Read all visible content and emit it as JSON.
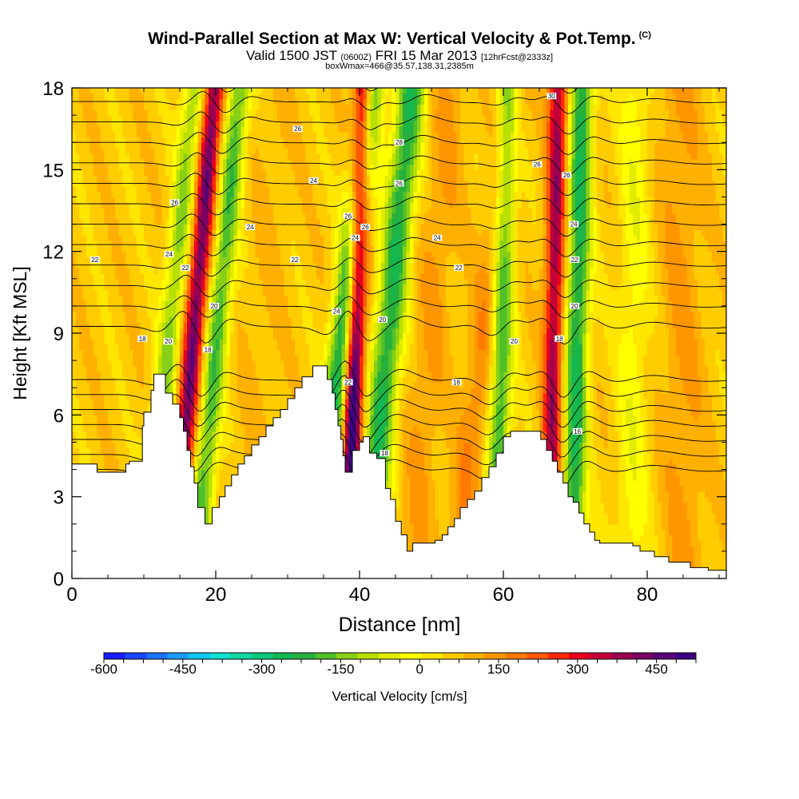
{
  "header": {
    "title": "Wind-Parallel Section at Max W: Vertical Velocity & Pot.Temp.",
    "copyright": "(C)",
    "subtitle_main": "Valid 1500 JST",
    "subtitle_utc": "(0600Z)",
    "subtitle_date": "FRI 15 Mar 2013",
    "subtitle_fcst": "[12hrFcst@2333z]",
    "subtitle2": "boxWmax=466@35.57,138.31,2385m"
  },
  "chart_data": {
    "type": "contour",
    "xlabel": "Distance [nm]",
    "ylabel": "Height [Kft MSL]",
    "xlim": [
      0,
      91
    ],
    "ylim": [
      0,
      18
    ],
    "xticks": [
      0,
      20,
      40,
      60,
      80
    ],
    "yticks": [
      0,
      3,
      6,
      9,
      12,
      15,
      18
    ],
    "xtick_labels": [
      "0",
      "20",
      "40",
      "60",
      "80"
    ],
    "ytick_labels": [
      "0",
      "3",
      "6",
      "9",
      "12",
      "15",
      "18"
    ],
    "terrain": [
      [
        0,
        4.2
      ],
      [
        3.5,
        4.2
      ],
      [
        3.5,
        3.9
      ],
      [
        7.5,
        3.9
      ],
      [
        7.5,
        4.2
      ],
      [
        8,
        4.2
      ],
      [
        8,
        4.3
      ],
      [
        9.8,
        4.3
      ],
      [
        9.8,
        5.6
      ],
      [
        10,
        5.6
      ],
      [
        10,
        6.1
      ],
      [
        11,
        6.1
      ],
      [
        11,
        6.9
      ],
      [
        11.4,
        6.9
      ],
      [
        11.4,
        7.5
      ],
      [
        13,
        7.5
      ],
      [
        13,
        6.8
      ],
      [
        14,
        6.8
      ],
      [
        14,
        6.4
      ],
      [
        15,
        6.4
      ],
      [
        15,
        5.9
      ],
      [
        15.5,
        5.9
      ],
      [
        15.5,
        5.4
      ],
      [
        16,
        5.4
      ],
      [
        16,
        4.7
      ],
      [
        16.5,
        4.7
      ],
      [
        16.5,
        4.1
      ],
      [
        17,
        4.1
      ],
      [
        17,
        3.5
      ],
      [
        17.5,
        3.5
      ],
      [
        17.5,
        2.6
      ],
      [
        18.5,
        2.6
      ],
      [
        18.5,
        2.0
      ],
      [
        19.5,
        2.0
      ],
      [
        19.5,
        2.6
      ],
      [
        20.5,
        2.6
      ],
      [
        20.5,
        3.0
      ],
      [
        21.3,
        3.0
      ],
      [
        21.3,
        3.4
      ],
      [
        22.2,
        3.4
      ],
      [
        22.2,
        3.8
      ],
      [
        23.1,
        3.8
      ],
      [
        23.1,
        4.2
      ],
      [
        24,
        4.2
      ],
      [
        24,
        4.5
      ],
      [
        25,
        4.5
      ],
      [
        25,
        4.9
      ],
      [
        26,
        4.9
      ],
      [
        26,
        5.2
      ],
      [
        27,
        5.2
      ],
      [
        27,
        5.6
      ],
      [
        28,
        5.6
      ],
      [
        28,
        5.9
      ],
      [
        29,
        5.9
      ],
      [
        29,
        6.2
      ],
      [
        30,
        6.2
      ],
      [
        30,
        6.6
      ],
      [
        31,
        6.6
      ],
      [
        31,
        7.0
      ],
      [
        32,
        7.0
      ],
      [
        32,
        7.4
      ],
      [
        33.5,
        7.4
      ],
      [
        33.5,
        7.8
      ],
      [
        35.5,
        7.8
      ],
      [
        35.5,
        7.3
      ],
      [
        36.2,
        7.3
      ],
      [
        36.2,
        6.8
      ],
      [
        36.6,
        6.8
      ],
      [
        36.6,
        6.2
      ],
      [
        37,
        6.2
      ],
      [
        37,
        5.6
      ],
      [
        37.4,
        5.6
      ],
      [
        37.4,
        5.1
      ],
      [
        37.7,
        5.1
      ],
      [
        37.7,
        4.5
      ],
      [
        38,
        4.5
      ],
      [
        38,
        3.9
      ],
      [
        39,
        3.9
      ],
      [
        39,
        4.7
      ],
      [
        40,
        4.7
      ],
      [
        40,
        5.0
      ],
      [
        40.5,
        5.0
      ],
      [
        40.5,
        5.2
      ],
      [
        41.4,
        5.2
      ],
      [
        41.4,
        4.6
      ],
      [
        42.4,
        4.6
      ],
      [
        42.4,
        4.4
      ],
      [
        43.6,
        4.4
      ],
      [
        43.6,
        3.3
      ],
      [
        44.3,
        3.3
      ],
      [
        44.3,
        2.9
      ],
      [
        45,
        2.9
      ],
      [
        45,
        2.1
      ],
      [
        45.8,
        2.1
      ],
      [
        45.8,
        1.6
      ],
      [
        46.6,
        1.6
      ],
      [
        46.6,
        1.0
      ],
      [
        47.4,
        1.0
      ],
      [
        47.4,
        1.3
      ],
      [
        50.5,
        1.3
      ],
      [
        50.5,
        1.4
      ],
      [
        51.5,
        1.4
      ],
      [
        51.5,
        1.6
      ],
      [
        52.3,
        1.6
      ],
      [
        52.3,
        1.9
      ],
      [
        53.2,
        1.9
      ],
      [
        53.2,
        2.2
      ],
      [
        54,
        2.2
      ],
      [
        54,
        2.6
      ],
      [
        55,
        2.6
      ],
      [
        55,
        2.9
      ],
      [
        56,
        2.9
      ],
      [
        56,
        3.2
      ],
      [
        57,
        3.2
      ],
      [
        57,
        3.7
      ],
      [
        58,
        3.7
      ],
      [
        58,
        4.1
      ],
      [
        59,
        4.1
      ],
      [
        59,
        4.6
      ],
      [
        60,
        4.6
      ],
      [
        60,
        5.2
      ],
      [
        61,
        5.2
      ],
      [
        61,
        5.4
      ],
      [
        65.2,
        5.4
      ],
      [
        65.2,
        5.1
      ],
      [
        66,
        5.1
      ],
      [
        66,
        4.7
      ],
      [
        66.8,
        4.7
      ],
      [
        66.8,
        4.3
      ],
      [
        67.5,
        4.3
      ],
      [
        67.5,
        3.9
      ],
      [
        68.3,
        3.9
      ],
      [
        68.3,
        3.5
      ],
      [
        69,
        3.5
      ],
      [
        69,
        3.0
      ],
      [
        69.7,
        3.0
      ],
      [
        69.7,
        2.8
      ],
      [
        70.5,
        2.8
      ],
      [
        70.5,
        2.4
      ],
      [
        71.2,
        2.4
      ],
      [
        71.2,
        2.0
      ],
      [
        72,
        2.0
      ],
      [
        72,
        1.7
      ],
      [
        72.7,
        1.7
      ],
      [
        72.7,
        1.4
      ],
      [
        73.4,
        1.4
      ],
      [
        73.4,
        1.3
      ],
      [
        78,
        1.3
      ],
      [
        78,
        1.2
      ],
      [
        79,
        1.2
      ],
      [
        79,
        1.0
      ],
      [
        81,
        1.0
      ],
      [
        81,
        0.8
      ],
      [
        83,
        0.8
      ],
      [
        83,
        0.6
      ],
      [
        86,
        0.6
      ],
      [
        86,
        0.4
      ],
      [
        88.5,
        0.4
      ],
      [
        88.5,
        0.3
      ],
      [
        91,
        0.3
      ]
    ],
    "w_axes": [
      {
        "x": 12.5,
        "dx_per_kft": 0.38,
        "amp": -180,
        "width": 1.6
      },
      {
        "x": 16.0,
        "dx_per_kft": 0.32,
        "amp": 350,
        "width": 1.4
      },
      {
        "x": 19.2,
        "dx_per_kft": 0.34,
        "amp": -230,
        "width": 1.6
      },
      {
        "x": 25.5,
        "dx_per_kft": 0.25,
        "amp": 20,
        "width": 3.0
      },
      {
        "x": 36.5,
        "dx_per_kft": 0.42,
        "amp": -330,
        "width": 1.8
      },
      {
        "x": 39.0,
        "dx_per_kft": 0.13,
        "amp": 466,
        "width": 1.3
      },
      {
        "x": 43.0,
        "dx_per_kft": 0.35,
        "amp": -280,
        "width": 2.0
      },
      {
        "x": 49.0,
        "dx_per_kft": 0.3,
        "amp": 60,
        "width": 2.5
      },
      {
        "x": 56.0,
        "dx_per_kft": 0.45,
        "amp": 90,
        "width": 2.0
      },
      {
        "x": 59.5,
        "dx_per_kft": 0.1,
        "amp": -250,
        "width": 1.5
      },
      {
        "x": 66.8,
        "dx_per_kft": 0.07,
        "amp": 300,
        "width": 1.3
      },
      {
        "x": 70.0,
        "dx_per_kft": 0.08,
        "amp": -290,
        "width": 1.6
      },
      {
        "x": 78.0,
        "dx_per_kft": 0.03,
        "amp": -80,
        "width": 2.2
      },
      {
        "x": 85.0,
        "dx_per_kft": -0.05,
        "amp": 60,
        "width": 3.0
      }
    ],
    "theta_labels": [
      {
        "x": 3.2,
        "y": 11.7,
        "text": "22"
      },
      {
        "x": 9.8,
        "y": 8.8,
        "text": "18"
      },
      {
        "x": 13.4,
        "y": 8.7,
        "text": "20"
      },
      {
        "x": 13.5,
        "y": 11.9,
        "text": "24"
      },
      {
        "x": 14.3,
        "y": 13.8,
        "text": "26"
      },
      {
        "x": 15.8,
        "y": 11.4,
        "text": "22"
      },
      {
        "x": 19.8,
        "y": 10.0,
        "text": "20"
      },
      {
        "x": 18.9,
        "y": 8.4,
        "text": "18"
      },
      {
        "x": 24.8,
        "y": 12.9,
        "text": "24"
      },
      {
        "x": 31.4,
        "y": 16.5,
        "text": "26"
      },
      {
        "x": 31.0,
        "y": 11.7,
        "text": "22"
      },
      {
        "x": 33.6,
        "y": 14.6,
        "text": "24"
      },
      {
        "x": 36.8,
        "y": 9.8,
        "text": "24"
      },
      {
        "x": 38.4,
        "y": 7.2,
        "text": "22"
      },
      {
        "x": 38.4,
        "y": 13.3,
        "text": "26"
      },
      {
        "x": 39.4,
        "y": 12.5,
        "text": "24"
      },
      {
        "x": 40.8,
        "y": 12.9,
        "text": "26"
      },
      {
        "x": 43.2,
        "y": 9.5,
        "text": "20"
      },
      {
        "x": 43.5,
        "y": 4.6,
        "text": "18"
      },
      {
        "x": 45.5,
        "y": 16.0,
        "text": "28"
      },
      {
        "x": 45.5,
        "y": 14.5,
        "text": "26"
      },
      {
        "x": 50.8,
        "y": 12.5,
        "text": "24"
      },
      {
        "x": 53.8,
        "y": 11.4,
        "text": "22"
      },
      {
        "x": 53.5,
        "y": 7.2,
        "text": "18"
      },
      {
        "x": 61.5,
        "y": 8.7,
        "text": "20"
      },
      {
        "x": 64.7,
        "y": 15.2,
        "text": "26"
      },
      {
        "x": 66.7,
        "y": 17.7,
        "text": "30"
      },
      {
        "x": 67.8,
        "y": 8.8,
        "text": "18"
      },
      {
        "x": 68.8,
        "y": 14.8,
        "text": "26"
      },
      {
        "x": 69.8,
        "y": 13.0,
        "text": "24"
      },
      {
        "x": 69.9,
        "y": 11.7,
        "text": "22"
      },
      {
        "x": 69.9,
        "y": 10.0,
        "text": "20"
      },
      {
        "x": 70.3,
        "y": 5.4,
        "text": "16"
      }
    ]
  },
  "colorbar": {
    "title": "Vertical Velocity [cm/s]",
    "min": -600,
    "max": 525,
    "step": 37.5,
    "tick_values": [
      -600,
      -450,
      -300,
      -150,
      0,
      150,
      300,
      450
    ],
    "tick_labels": [
      "-600",
      "-450",
      "-300",
      "-150",
      "0",
      "150",
      "300",
      "450"
    ],
    "colors": [
      "#1a1aff",
      "#1a46ff",
      "#1a72ff",
      "#1a9cff",
      "#12c4f0",
      "#10e0d0",
      "#10d8a0",
      "#10c87a",
      "#14b850",
      "#28b03c",
      "#50c02a",
      "#88d018",
      "#b8e000",
      "#e2ec00",
      "#ffff00",
      "#ffe600",
      "#ffcc00",
      "#ffb000",
      "#ff9600",
      "#ff7a00",
      "#ff5a00",
      "#ff2800",
      "#e8001e",
      "#c40038",
      "#9c0050",
      "#7a0064",
      "#580078",
      "#3c0082"
    ]
  }
}
